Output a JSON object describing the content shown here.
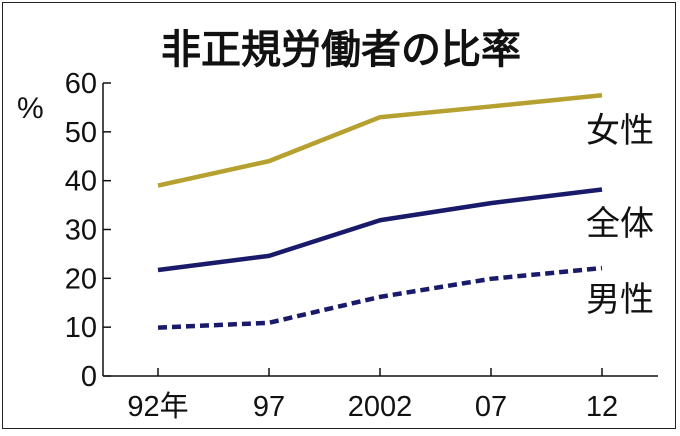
{
  "chart_data": {
    "type": "line",
    "title": "非正規労働者の比率",
    "ylabel": "%",
    "xlabel": "",
    "categories": [
      "92年",
      "97",
      "2002",
      "07",
      "12"
    ],
    "ylim": [
      0,
      60
    ],
    "yticks": [
      "0",
      "10",
      "20",
      "30",
      "40",
      "50",
      "60"
    ],
    "grid": false,
    "legend": "inline-right",
    "series": [
      {
        "name": "女性",
        "values": [
          39,
          44,
          53,
          55.2,
          57.5
        ],
        "color": "#b5a030",
        "style": "solid"
      },
      {
        "name": "全体",
        "values": [
          21.7,
          24.6,
          31.9,
          35.4,
          38.2
        ],
        "color": "#1a1a6b",
        "style": "solid"
      },
      {
        "name": "男性",
        "values": [
          9.9,
          10.9,
          16.2,
          19.9,
          22.1
        ],
        "color": "#1a1a6b",
        "style": "dashed"
      }
    ]
  }
}
